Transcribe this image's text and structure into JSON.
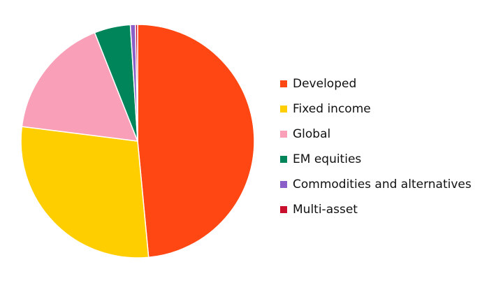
{
  "chart_data": {
    "type": "pie",
    "categories": [
      "Developed",
      "Fixed income",
      "Global",
      "EM equities",
      "Commodities and alternatives",
      "Multi-asset"
    ],
    "values": [
      48.5,
      28.5,
      17,
      5,
      0.7,
      0.3
    ],
    "colors": [
      "#ff4713",
      "#ffce00",
      "#f9a0b8",
      "#00845a",
      "#8b5fc8",
      "#c8102e"
    ],
    "legend": "right"
  }
}
